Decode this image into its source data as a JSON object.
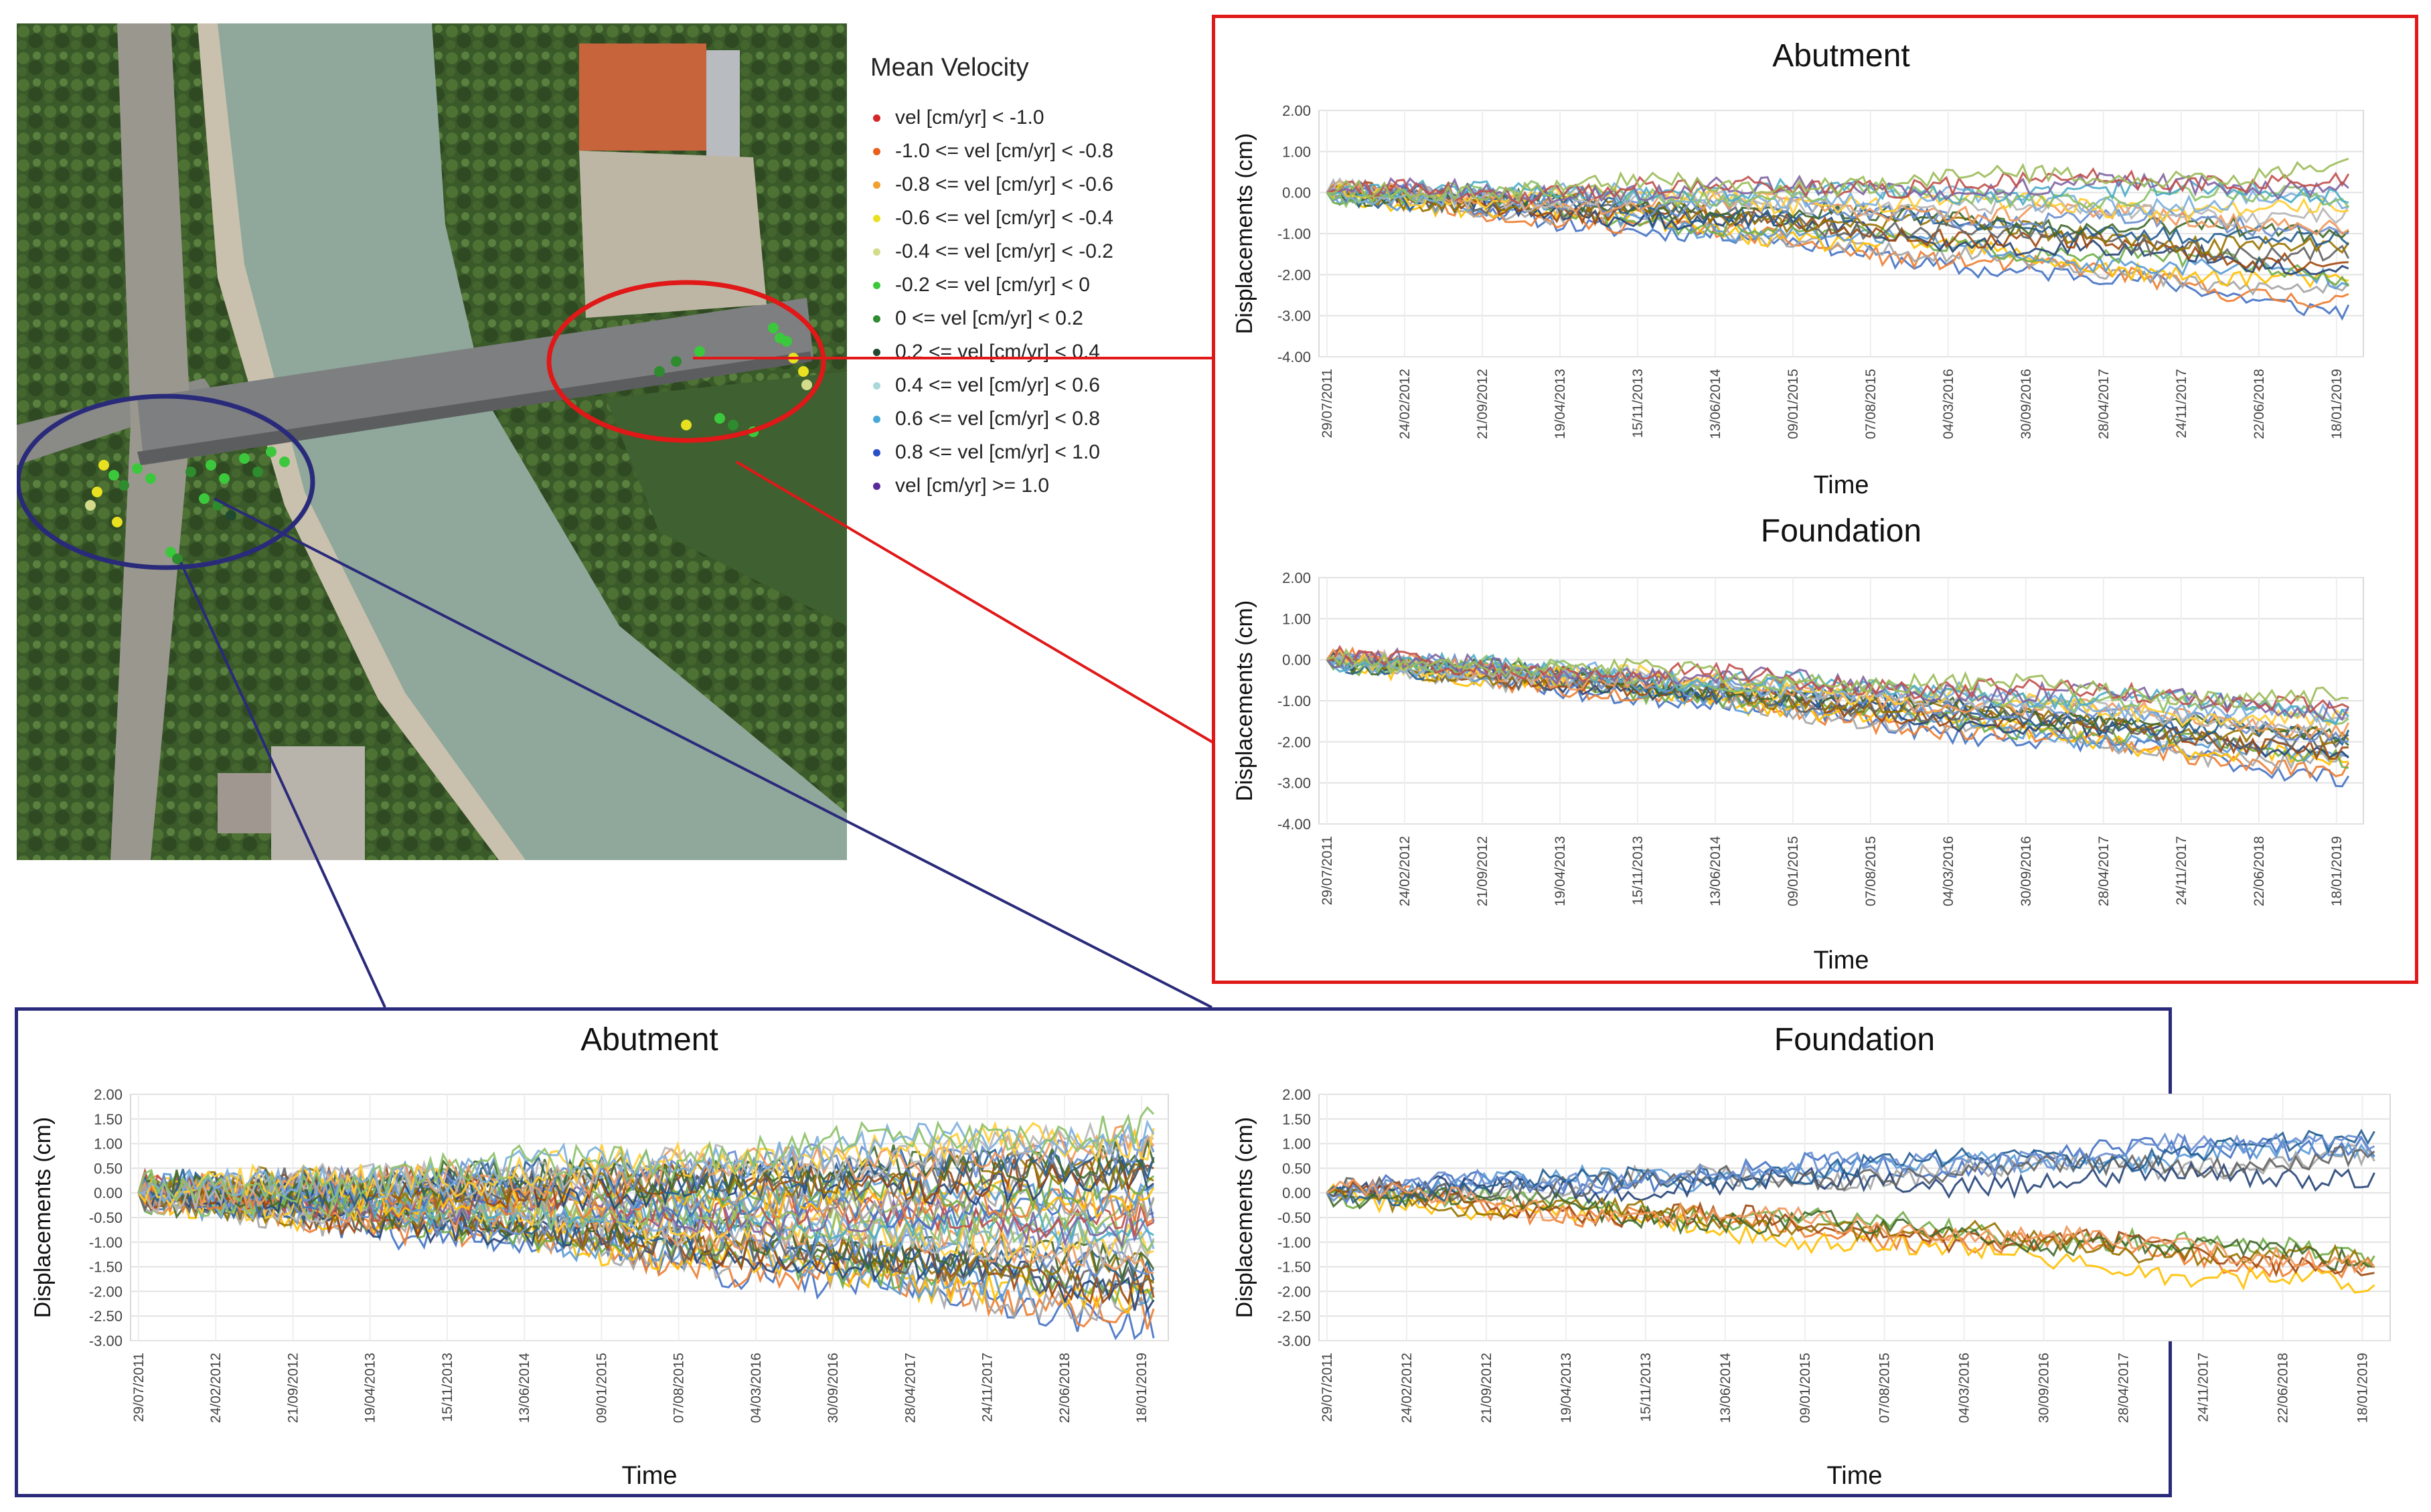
{
  "legend": {
    "title": "Mean Velocity",
    "items": [
      {
        "label": "vel [cm/yr] < -1.0",
        "color": "#d62728"
      },
      {
        "label": "-1.0 <= vel [cm/yr] < -0.8",
        "color": "#e8601c"
      },
      {
        "label": "-0.8 <= vel [cm/yr] < -0.6",
        "color": "#f0a030"
      },
      {
        "label": "-0.6 <= vel [cm/yr] < -0.4",
        "color": "#e8e020"
      },
      {
        "label": "-0.4 <= vel [cm/yr] < -0.2",
        "color": "#d4dc8c"
      },
      {
        "label": "-0.2 <= vel [cm/yr] < 0",
        "color": "#3cc83c"
      },
      {
        "label": "0 <= vel [cm/yr] < 0.2",
        "color": "#2e8b2e"
      },
      {
        "label": "0.2 <= vel [cm/yr] < 0.4",
        "color": "#1f4a2e"
      },
      {
        "label": "0.4 <= vel [cm/yr] < 0.6",
        "color": "#a8d8d8"
      },
      {
        "label": "0.6 <= vel [cm/yr] < 0.8",
        "color": "#48a8d8"
      },
      {
        "label": "0.8 <= vel [cm/yr] < 1.0",
        "color": "#2a50c8"
      },
      {
        "label": "vel [cm/yr] >= 1.0",
        "color": "#5a2a9a"
      }
    ]
  },
  "colors": {
    "red_frame": "#e01818",
    "blue_frame": "#2a2a7a",
    "series_palette": [
      "#4472c4",
      "#ed7d31",
      "#a5a5a5",
      "#ffc000",
      "#5b9bd5",
      "#70ad47",
      "#264478",
      "#9e480e",
      "#636363",
      "#997300",
      "#255e91",
      "#43682b",
      "#698ed0",
      "#f1975a",
      "#b7b7b7",
      "#ffcd33",
      "#7cafdd",
      "#8cc168",
      "#4bacc6",
      "#8064a2",
      "#c0504d",
      "#9bbb59"
    ]
  },
  "chart_data": [
    {
      "id": "red-abutment",
      "type": "line",
      "title": "Abutment",
      "xlabel": "Time",
      "ylabel": "Displacements (cm)",
      "x_ticks": [
        "29/07/2011",
        "24/02/2012",
        "21/09/2012",
        "19/04/2013",
        "15/11/2013",
        "13/06/2014",
        "09/01/2015",
        "07/08/2015",
        "04/03/2016",
        "30/09/2016",
        "28/04/2017",
        "24/11/2017",
        "22/06/2018",
        "18/01/2019"
      ],
      "y_ticks": [
        "2.00",
        "1.00",
        "0.00",
        "-1.00",
        "-2.00",
        "-3.00",
        "-4.00"
      ],
      "ylim": [
        -4,
        2
      ],
      "grid": true,
      "series_count": 22,
      "approx_final_range": [
        -2.8,
        0.5
      ],
      "trend": "mixed"
    },
    {
      "id": "red-foundation",
      "type": "line",
      "title": "Foundation",
      "xlabel": "Time",
      "ylabel": "Displacements (cm)",
      "x_ticks": [
        "29/07/2011",
        "24/02/2012",
        "21/09/2012",
        "19/04/2013",
        "15/11/2013",
        "13/06/2014",
        "09/01/2015",
        "07/08/2015",
        "04/03/2016",
        "30/09/2016",
        "28/04/2017",
        "24/11/2017",
        "22/06/2018",
        "18/01/2019"
      ],
      "y_ticks": [
        "2.00",
        "1.00",
        "0.00",
        "-1.00",
        "-2.00",
        "-3.00",
        "-4.00"
      ],
      "ylim": [
        -4,
        2
      ],
      "grid": true,
      "series_count": 22,
      "approx_final_range": [
        -2.8,
        -1.0
      ],
      "trend": "subsiding"
    },
    {
      "id": "blue-abutment",
      "type": "line",
      "title": "Abutment",
      "xlabel": "Time",
      "ylabel": "Displacements (cm)",
      "x_ticks": [
        "29/07/2011",
        "24/02/2012",
        "21/09/2012",
        "19/04/2013",
        "15/11/2013",
        "13/06/2014",
        "09/01/2015",
        "07/08/2015",
        "04/03/2016",
        "30/09/2016",
        "28/04/2017",
        "24/11/2017",
        "22/06/2018",
        "18/01/2019"
      ],
      "y_ticks": [
        "2.00",
        "1.50",
        "1.00",
        "0.50",
        "0.00",
        "-0.50",
        "-1.00",
        "-1.50",
        "-2.00",
        "-2.50",
        "-3.00"
      ],
      "ylim": [
        -3,
        2
      ],
      "grid": true,
      "series_count": 40,
      "approx_final_range": [
        -2.6,
        1.35
      ],
      "trend": "spread"
    },
    {
      "id": "blue-foundation",
      "type": "line",
      "title": "Foundation",
      "xlabel": "Time",
      "ylabel": "Displacements (cm)",
      "x_ticks": [
        "29/07/2011",
        "24/02/2012",
        "21/09/2012",
        "19/04/2013",
        "15/11/2013",
        "13/06/2014",
        "09/01/2015",
        "07/08/2015",
        "04/03/2016",
        "30/09/2016",
        "28/04/2017",
        "24/11/2017",
        "22/06/2018",
        "18/01/2019"
      ],
      "y_ticks": [
        "2.00",
        "1.50",
        "1.00",
        "0.50",
        "0.00",
        "-0.50",
        "-1.00",
        "-1.50",
        "-2.00",
        "-2.50",
        "-3.00"
      ],
      "ylim": [
        -3,
        2
      ],
      "grid": true,
      "series_count": 14,
      "approx_final_range": [
        -2.0,
        1.3
      ],
      "trend": "split"
    }
  ]
}
